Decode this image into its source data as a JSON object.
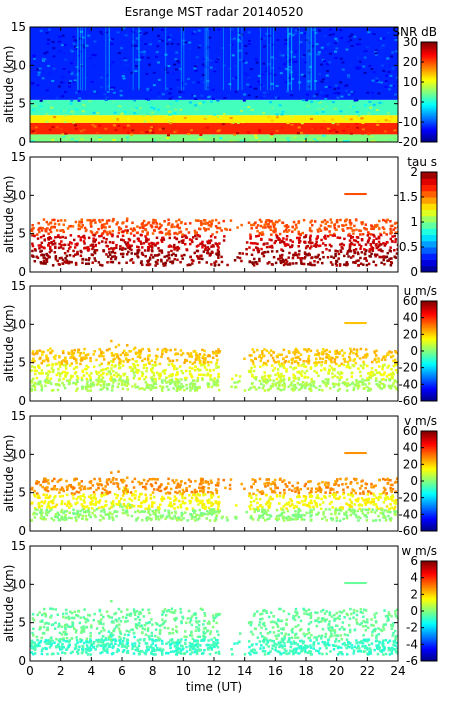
{
  "title": "Esrange MST radar 20140520",
  "chart_data": [
    {
      "type": "heatmap",
      "quantity": "SNR",
      "colorbar_label": "SNR dB",
      "ylabel": "altitude (km)",
      "xlabel": "",
      "xlim": [
        0,
        24
      ],
      "ylim": [
        0,
        15
      ],
      "x_ticks": [
        "0",
        "2",
        "4",
        "6",
        "8",
        "10",
        "12",
        "14",
        "16",
        "18",
        "20",
        "22",
        "24"
      ],
      "y_ticks": [
        "0",
        "5",
        "10",
        "15"
      ],
      "clim": [
        -20,
        30
      ],
      "cbar_ticks": [
        "30",
        "20",
        "10",
        "0",
        "-10",
        "-20"
      ],
      "colormap": "jet",
      "fill": "full",
      "field": [
        {
          "alt": [
            0,
            1
          ],
          "value": 5
        },
        {
          "alt": [
            1,
            2.5
          ],
          "value": 22
        },
        {
          "alt": [
            2.5,
            3.5
          ],
          "value": 12
        },
        {
          "alt": [
            3.5,
            5.5
          ],
          "value": 2
        },
        {
          "alt": [
            5.5,
            15
          ],
          "value": -12
        }
      ]
    },
    {
      "type": "heatmap",
      "quantity": "tau",
      "colorbar_label": "tau s",
      "ylabel": "altitude (km)",
      "xlabel": "",
      "xlim": [
        0,
        24
      ],
      "ylim": [
        0,
        15
      ],
      "x_ticks": [
        "0",
        "2",
        "4",
        "6",
        "8",
        "10",
        "12",
        "14",
        "16",
        "18",
        "20",
        "22",
        "24"
      ],
      "y_ticks": [
        "0",
        "5",
        "10",
        "15"
      ],
      "clim": [
        0,
        2
      ],
      "cbar_ticks": [
        "2",
        "1.5",
        "1",
        "0.5",
        "0"
      ],
      "colormap": "jet-stepped",
      "fill": "sparse",
      "field": [
        {
          "alt": [
            1,
            3
          ],
          "value": 1.95
        },
        {
          "alt": [
            3,
            5
          ],
          "value": 1.85
        },
        {
          "alt": [
            5,
            7
          ],
          "value": 1.6
        }
      ]
    },
    {
      "type": "heatmap",
      "quantity": "u",
      "colorbar_label": "u m/s",
      "ylabel": "altitude (km)",
      "xlabel": "",
      "xlim": [
        0,
        24
      ],
      "ylim": [
        0,
        15
      ],
      "x_ticks": [
        "0",
        "2",
        "4",
        "6",
        "8",
        "10",
        "12",
        "14",
        "16",
        "18",
        "20",
        "22",
        "24"
      ],
      "y_ticks": [
        "0",
        "5",
        "10",
        "15"
      ],
      "clim": [
        -60,
        60
      ],
      "cbar_ticks": [
        "60",
        "40",
        "20",
        "0",
        "-20",
        "-40",
        "-60"
      ],
      "colormap": "jet",
      "fill": "sparse",
      "field": [
        {
          "alt": [
            1.5,
            3
          ],
          "value": 5
        },
        {
          "alt": [
            3,
            5
          ],
          "value": 12
        },
        {
          "alt": [
            5,
            7
          ],
          "value": 22
        }
      ]
    },
    {
      "type": "heatmap",
      "quantity": "v",
      "colorbar_label": "v m/s",
      "ylabel": "altitude (km)",
      "xlabel": "",
      "xlim": [
        0,
        24
      ],
      "ylim": [
        0,
        15
      ],
      "x_ticks": [
        "0",
        "2",
        "4",
        "6",
        "8",
        "10",
        "12",
        "14",
        "16",
        "18",
        "20",
        "22",
        "24"
      ],
      "y_ticks": [
        "0",
        "5",
        "10",
        "15"
      ],
      "clim": [
        -60,
        60
      ],
      "cbar_ticks": [
        "60",
        "40",
        "20",
        "0",
        "-20",
        "-40",
        "-60"
      ],
      "colormap": "jet",
      "fill": "sparse",
      "field": [
        {
          "alt": [
            1.5,
            3
          ],
          "value": 2
        },
        {
          "alt": [
            3,
            5
          ],
          "value": 15
        },
        {
          "alt": [
            5,
            7
          ],
          "value": 28
        }
      ]
    },
    {
      "type": "heatmap",
      "quantity": "w",
      "colorbar_label": "w m/s",
      "ylabel": "altitude (km)",
      "xlabel": "time (UT)",
      "xlim": [
        0,
        24
      ],
      "ylim": [
        0,
        15
      ],
      "x_ticks": [
        "0",
        "2",
        "4",
        "6",
        "8",
        "10",
        "12",
        "14",
        "16",
        "18",
        "20",
        "22",
        "24"
      ],
      "y_ticks": [
        "0",
        "5",
        "10",
        "15"
      ],
      "clim": [
        -6,
        6
      ],
      "cbar_ticks": [
        "6",
        "4",
        "2",
        "0",
        "-2",
        "-4",
        "-6"
      ],
      "colormap": "jet",
      "fill": "sparse",
      "field": [
        {
          "alt": [
            1,
            3
          ],
          "value": -0.8
        },
        {
          "alt": [
            3,
            7
          ],
          "value": -0.3
        }
      ]
    }
  ]
}
